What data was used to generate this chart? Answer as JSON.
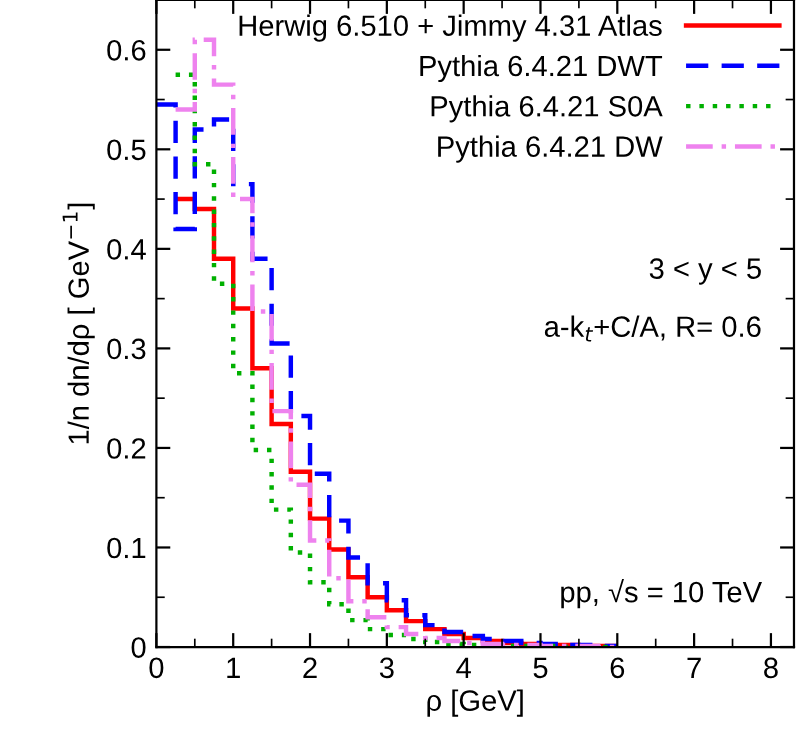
{
  "chart_data": {
    "type": "histogram",
    "xlabel": "ρ [GeV]",
    "ylabel": "1/n dn/dρ [ GeV$^{−1}$]",
    "bins": [
      0,
      0.25,
      0.5,
      0.75,
      1.0,
      1.25,
      1.5,
      1.75,
      2.0,
      2.25,
      2.5,
      2.75,
      3.0,
      3.25,
      3.5,
      3.75,
      4.0,
      4.25,
      4.5,
      4.75,
      5.0,
      5.25,
      5.5,
      5.75,
      6.0
    ],
    "series": [
      {
        "name": "Herwig 6.510 + Jimmy 4.31 Atlas",
        "color": "#ff0000",
        "line_style": "solid",
        "bins": [
          0.25,
          0.5,
          0.75,
          1.0,
          1.25,
          1.5,
          1.75,
          2.0,
          2.25,
          2.5,
          2.75,
          3.0,
          3.25,
          3.5,
          3.75,
          4.0,
          4.25,
          4.5,
          4.75,
          5.0,
          5.25,
          5.5,
          5.75,
          6.0
        ],
        "values": [
          0.45,
          0.44,
          0.39,
          0.34,
          0.28,
          0.224,
          0.176,
          0.129,
          0.098,
          0.07,
          0.05,
          0.037,
          0.026,
          0.018,
          0.013,
          0.009,
          0.006,
          0.004,
          0.003,
          0.002,
          0.002,
          0.001,
          0.001
        ]
      },
      {
        "name": "Pythia 6.4.21 DWT",
        "color": "#0000ff",
        "line_style": "dashed",
        "values": [
          0.545,
          0.42,
          0.52,
          0.53,
          0.465,
          0.39,
          0.305,
          0.232,
          0.174,
          0.127,
          0.09,
          0.064,
          0.047,
          0.032,
          0.022,
          0.015,
          0.011,
          0.008,
          0.006,
          0.004,
          0.003,
          0.002,
          0.002,
          0.001
        ]
      },
      {
        "name": "Pythia 6.4.21 S0A",
        "color": "#00b000",
        "line_style": "dotted",
        "bins": [
          0.25,
          0.5,
          0.75,
          1.0,
          1.25,
          1.5,
          1.75,
          2.0,
          2.25,
          2.5,
          2.75,
          3.0,
          3.25,
          3.5,
          3.75,
          4.0,
          4.25,
          4.5,
          4.75,
          5.0,
          5.25,
          5.5,
          5.75,
          6.0
        ],
        "values": [
          0.575,
          0.485,
          0.365,
          0.275,
          0.198,
          0.138,
          0.095,
          0.065,
          0.043,
          0.027,
          0.018,
          0.012,
          0.008,
          0.005,
          0.003,
          0.002,
          0.002,
          0.001,
          0.001,
          0.001,
          0.0,
          0.0,
          0.0
        ]
      },
      {
        "name": "Pythia 6.4.21 DW",
        "color": "#ee82ee",
        "line_style": "dashdot",
        "bins": [
          0.25,
          0.5,
          0.75,
          1.0,
          1.25,
          1.5,
          1.75,
          2.0,
          2.25,
          2.5,
          2.75,
          3.0,
          3.25,
          3.5,
          3.75,
          4.0,
          4.25,
          4.5,
          4.75,
          5.0,
          5.25,
          5.5,
          5.75,
          6.0
        ],
        "values": [
          0.54,
          0.61,
          0.565,
          0.45,
          0.337,
          0.237,
          0.163,
          0.107,
          0.069,
          0.046,
          0.03,
          0.02,
          0.013,
          0.009,
          0.006,
          0.004,
          0.003,
          0.002,
          0.002,
          0.001,
          0.001,
          0.001,
          0.0
        ]
      }
    ],
    "annotations": [
      "3 < y < 5",
      "a-k$_{t}$+C/A, R= 0.6",
      "pp, √s = 10 TeV"
    ],
    "xlim": [
      0,
      8.3
    ],
    "ylim": [
      0,
      0.65
    ],
    "xticks": [
      0,
      1,
      2,
      3,
      4,
      5,
      6,
      7,
      8
    ],
    "yticks": [
      0,
      0.1,
      0.2,
      0.3,
      0.4,
      0.5,
      0.6
    ],
    "grid": false,
    "legend": "top right"
  }
}
